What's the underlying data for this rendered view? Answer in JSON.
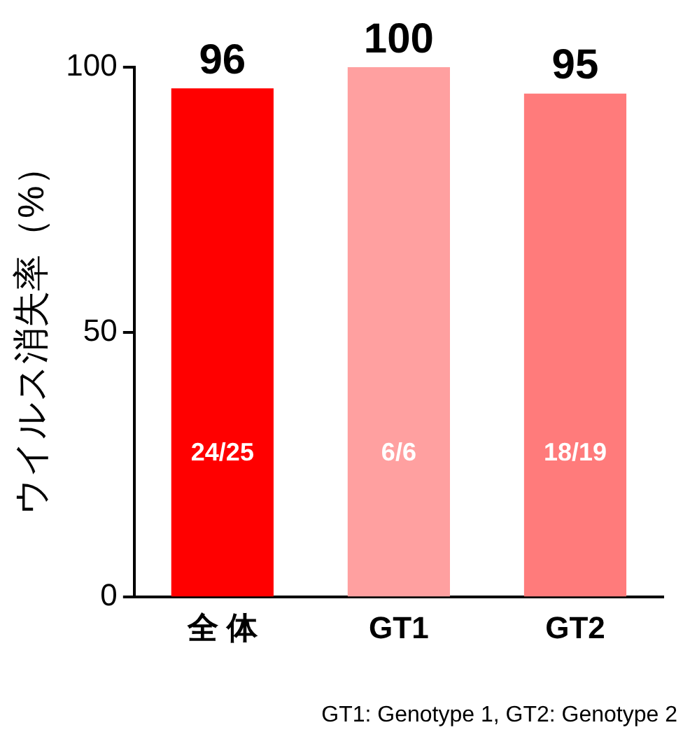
{
  "chart_data": {
    "type": "bar",
    "ylabel": "ウイルス消失率（%）",
    "categories": [
      "全 体",
      "GT1",
      "GT2"
    ],
    "values": [
      96,
      100,
      95
    ],
    "colors": [
      "#ff0000",
      "#ffa0a0",
      "#ff7b7b"
    ],
    "ylim": [
      0,
      100
    ],
    "yticks": [
      0,
      50,
      100
    ],
    "grid": false,
    "legend": false,
    "data_labels": true,
    "annotations": [
      "24/25",
      "6/6",
      "18/19",
      "GT1: Genotype 1, GT2: Genotype 2"
    ]
  }
}
